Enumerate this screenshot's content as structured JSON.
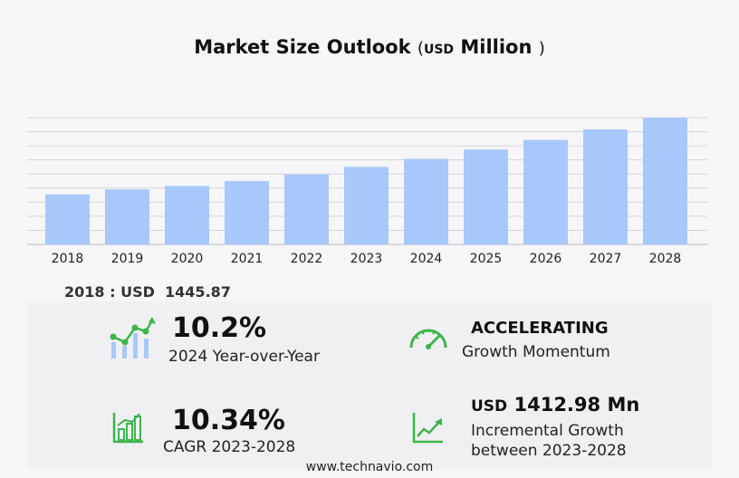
{
  "title": {
    "main": "Market Size Outlook",
    "open_paren": "(",
    "unit": "USD",
    "unit_word": "Million",
    "close_paren": ")"
  },
  "chart_data": {
    "type": "bar",
    "categories": [
      "2018",
      "2019",
      "2020",
      "2021",
      "2022",
      "2023",
      "2024",
      "2025",
      "2026",
      "2027",
      "2028"
    ],
    "values": [
      1445.87,
      1590,
      1690,
      1830,
      2020,
      2240,
      2470,
      2740,
      3020,
      3320,
      3660
    ],
    "ylim": [
      0,
      3660
    ],
    "grid": true,
    "bar_color": "#a8c8fb"
  },
  "base_value": {
    "year": "2018",
    "sep": ":",
    "currency": "USD",
    "value": "1445.87"
  },
  "stats": {
    "yoy": {
      "value": "10.2%",
      "label": "2024 Year-over-Year",
      "icon": "growth-chart-icon"
    },
    "momentum": {
      "value": "ACCELERATING",
      "label": "Growth Momentum",
      "icon": "speedometer-icon"
    },
    "cagr": {
      "value": "10.34%",
      "label": "CAGR 2023-2028",
      "icon": "bar-chart-icon"
    },
    "incremental": {
      "currency": "USD",
      "value": "1412.98 Mn",
      "label_1": "Incremental Growth",
      "label_2": "between 2023-2028",
      "icon": "trend-line-icon"
    }
  },
  "colors": {
    "accent_green": "#3cb54a",
    "accent_blue": "#a8c8fb"
  },
  "footer": "www.technavio.com"
}
